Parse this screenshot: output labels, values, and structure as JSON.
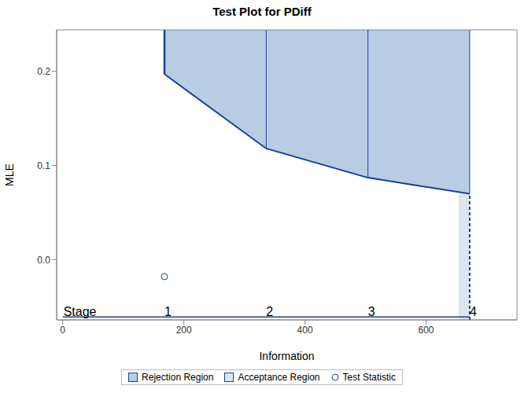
{
  "chart_data": {
    "type": "group_sequential_test",
    "title": "Test Plot for PDiff",
    "x_label": "Information",
    "y_label": "MLE",
    "xlim": [
      -10,
      750
    ],
    "ylim": [
      -0.064,
      0.244
    ],
    "xticks": [
      0,
      200,
      400,
      600
    ],
    "yticks": [
      {
        "value": 0,
        "label": "0.0"
      },
      {
        "value": 0.1,
        "label": "0.1"
      },
      {
        "value": 0.2,
        "label": "0.2"
      }
    ],
    "stage_label": "Stage",
    "stages": [
      1,
      2,
      3,
      4
    ],
    "x": [
      168,
      336,
      504,
      672
    ],
    "series": [
      {
        "name": "Rejection Region",
        "color": "#b8cce4",
        "values": [
          0.197,
          0.118,
          0.087,
          0.07
        ]
      },
      {
        "name": "Acceptance Region",
        "color": "#dce6f1",
        "values": [
          null,
          null,
          null,
          0.07
        ]
      },
      {
        "name": "Test Statistic",
        "color": "#27478c",
        "marker": "circle",
        "values": [
          -0.018,
          null,
          null,
          null
        ]
      }
    ]
  }
}
